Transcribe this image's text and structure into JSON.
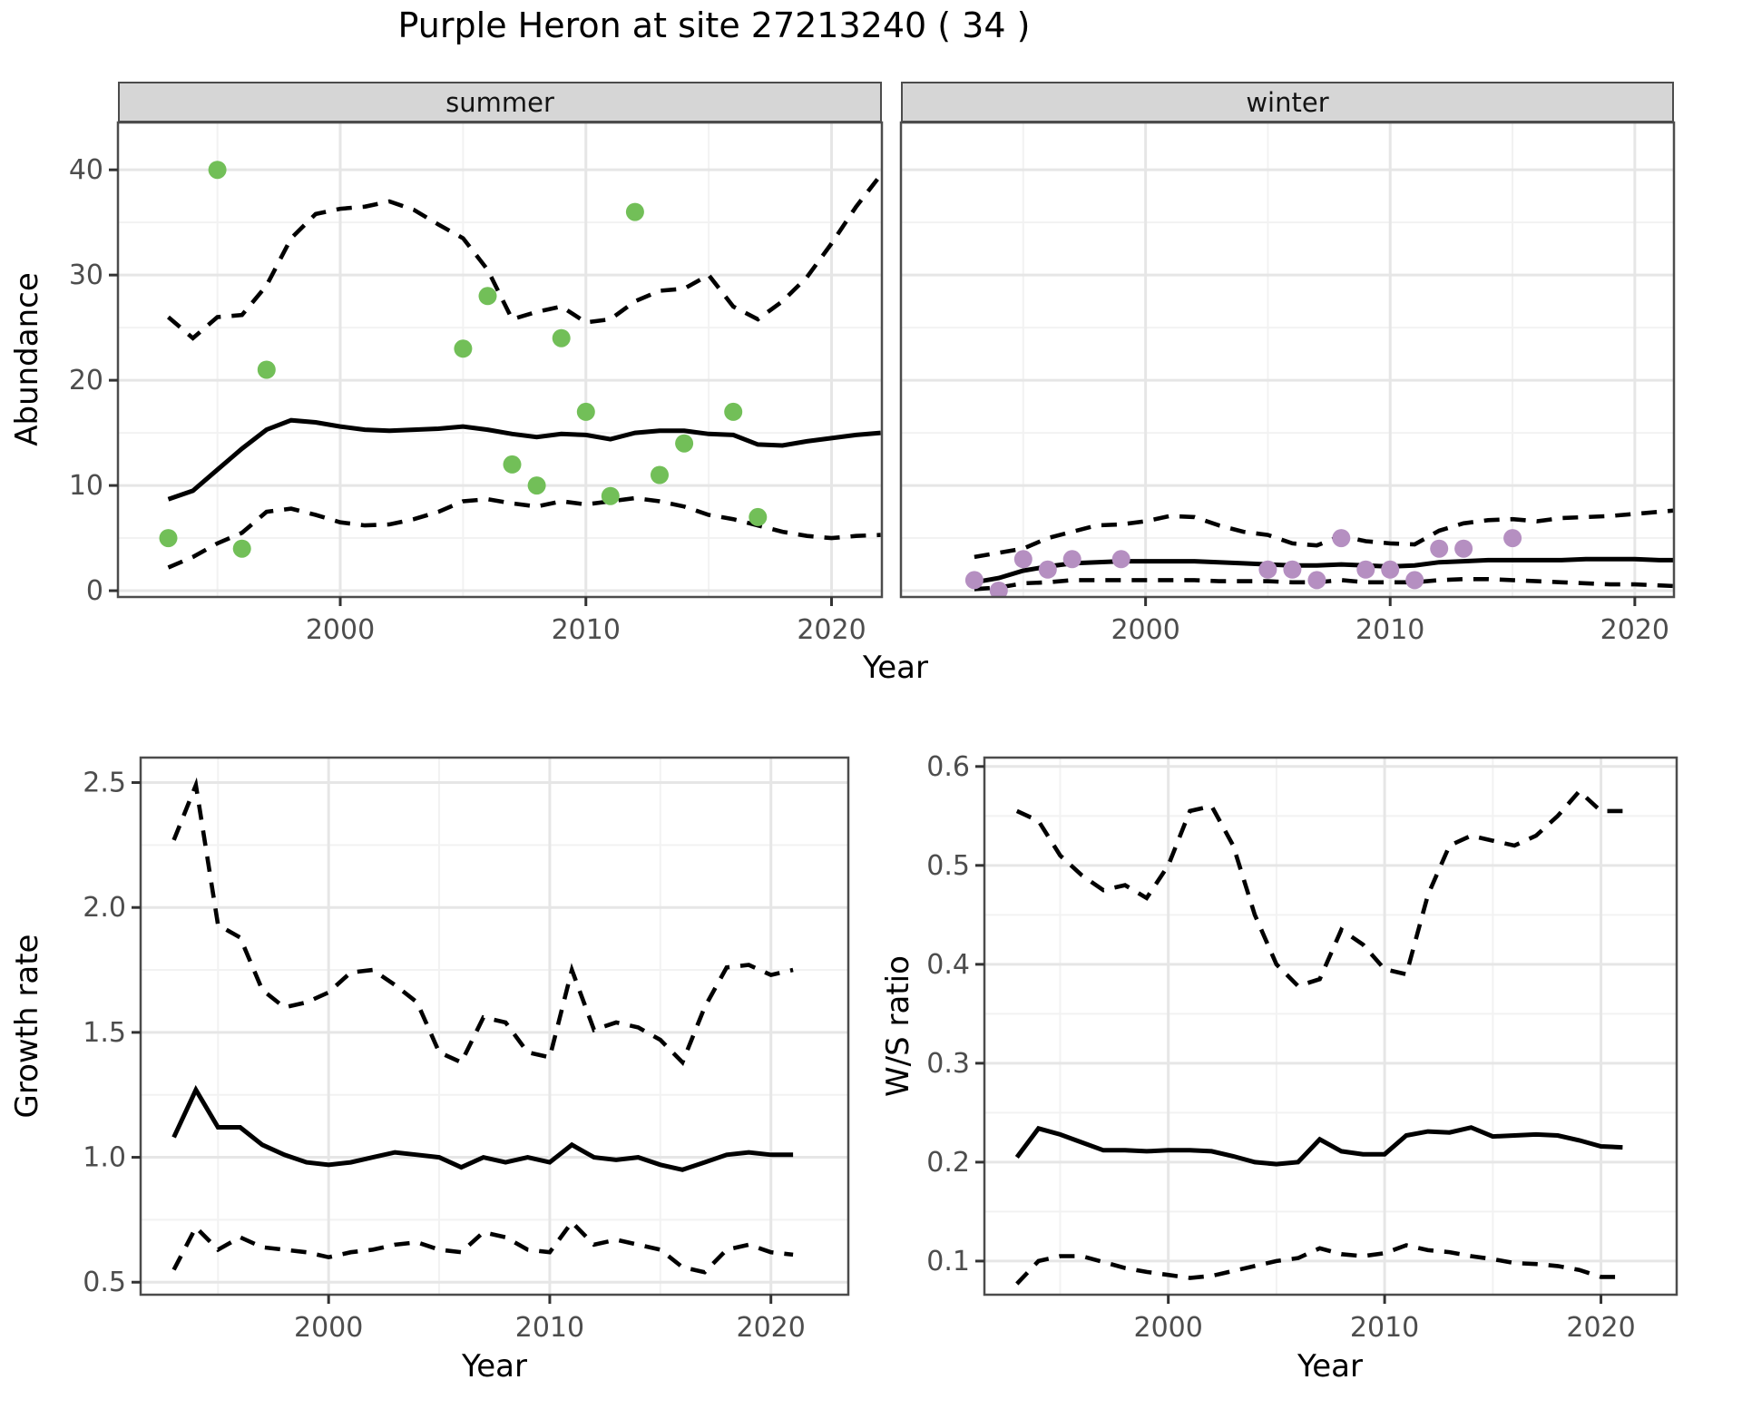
{
  "title": "Purple Heron at site 27213240 ( 34 )",
  "axis_titles": {
    "abundance": "Abundance",
    "year": "Year",
    "growth": "Growth rate",
    "ws": "W/S ratio"
  },
  "colors": {
    "summer_points": "#72bf58",
    "winter_points": "#b58fc1",
    "line": "#000000",
    "strip_bg": "#d6d6d6",
    "panel_border": "#4c4c4c",
    "grid_major": "#e6e6e6",
    "grid_minor": "#f2f2f2",
    "tick_mark": "#333333",
    "tick_text": "#4d4d4d"
  },
  "chart_data": [
    {
      "id": "abundance-summer",
      "type": "line",
      "title": "summer",
      "xlabel": "Year",
      "ylabel": "Abundance",
      "x_domain": [
        1990.95,
        2022.05
      ],
      "y_domain": [
        -0.6,
        44.5
      ],
      "x_ticks": [
        2000,
        2010,
        2020
      ],
      "x_tick_labels": [
        "2000",
        "2010",
        "2020"
      ],
      "x_minor": [
        1995,
        2005,
        2015
      ],
      "y_ticks": [
        0,
        10,
        20,
        30,
        40
      ],
      "y_tick_labels": [
        "0",
        "10",
        "20",
        "30",
        "40"
      ],
      "y_minor": [
        5,
        15,
        25,
        35
      ],
      "years": [
        1993,
        1994,
        1995,
        1996,
        1997,
        1998,
        1999,
        2000,
        2001,
        2002,
        2003,
        2004,
        2005,
        2006,
        2007,
        2008,
        2009,
        2010,
        2011,
        2012,
        2013,
        2014,
        2015,
        2016,
        2017,
        2018,
        2019,
        2020,
        2021,
        2022
      ],
      "series": [
        {
          "name": "mean",
          "style": "solid",
          "values": [
            8.7,
            9.5,
            11.5,
            13.5,
            15.3,
            16.2,
            16.0,
            15.6,
            15.3,
            15.2,
            15.3,
            15.4,
            15.6,
            15.3,
            14.9,
            14.6,
            14.9,
            14.8,
            14.4,
            15.0,
            15.2,
            15.2,
            14.9,
            14.8,
            13.9,
            13.8,
            14.2,
            14.5,
            14.8,
            15.0
          ]
        },
        {
          "name": "upper-ci",
          "style": "dashed",
          "values": [
            26,
            24,
            26,
            26.2,
            29,
            33.5,
            35.8,
            36.3,
            36.5,
            37,
            36.2,
            34.8,
            33.5,
            30.5,
            25.8,
            26.5,
            27,
            25.5,
            25.8,
            27.5,
            28.5,
            28.7,
            30,
            27,
            25.8,
            27.5,
            29.8,
            33,
            36.5,
            39.5
          ]
        },
        {
          "name": "lower-ci",
          "style": "dashed",
          "values": [
            2.2,
            3.2,
            4.5,
            5.5,
            7.5,
            7.8,
            7.2,
            6.5,
            6.2,
            6.3,
            6.8,
            7.5,
            8.5,
            8.7,
            8.3,
            8.0,
            8.5,
            8.2,
            8.5,
            8.8,
            8.5,
            8.0,
            7.2,
            6.8,
            6.2,
            5.6,
            5.2,
            5.0,
            5.2,
            5.3
          ]
        }
      ],
      "points": {
        "name": "summer-observations",
        "color": "#72bf58",
        "data": [
          [
            1993,
            5
          ],
          [
            1995,
            40
          ],
          [
            1996,
            4
          ],
          [
            1997,
            21
          ],
          [
            2005,
            23
          ],
          [
            2006,
            28
          ],
          [
            2007,
            12
          ],
          [
            2008,
            10
          ],
          [
            2009,
            24
          ],
          [
            2010,
            17
          ],
          [
            2011,
            9
          ],
          [
            2012,
            36
          ],
          [
            2013,
            11
          ],
          [
            2014,
            14
          ],
          [
            2016,
            17
          ],
          [
            2017,
            7
          ]
        ]
      }
    },
    {
      "id": "abundance-winter",
      "type": "line",
      "title": "winter",
      "xlabel": "Year",
      "ylabel": "Abundance",
      "x_domain": [
        1990.0,
        2021.6
      ],
      "y_domain": [
        -0.6,
        44.5
      ],
      "x_ticks": [
        2000,
        2010,
        2020
      ],
      "x_tick_labels": [
        "2000",
        "2010",
        "2020"
      ],
      "x_minor": [
        1995,
        2005,
        2015
      ],
      "y_ticks": [
        0,
        10,
        20,
        30,
        40
      ],
      "y_tick_labels": [],
      "y_minor": [
        5,
        15,
        25,
        35
      ],
      "years": [
        1993,
        1994,
        1995,
        1996,
        1997,
        1998,
        1999,
        2000,
        2001,
        2002,
        2003,
        2004,
        2005,
        2006,
        2007,
        2008,
        2009,
        2010,
        2011,
        2012,
        2013,
        2014,
        2015,
        2016,
        2017,
        2018,
        2019,
        2020,
        2021,
        2022
      ],
      "series": [
        {
          "name": "mean",
          "style": "solid",
          "values": [
            0.8,
            1.2,
            1.9,
            2.3,
            2.6,
            2.7,
            2.8,
            2.8,
            2.8,
            2.8,
            2.7,
            2.6,
            2.5,
            2.4,
            2.4,
            2.5,
            2.4,
            2.3,
            2.4,
            2.7,
            2.8,
            2.9,
            2.9,
            2.9,
            2.9,
            3.0,
            3.0,
            3.0,
            2.9,
            2.9
          ]
        },
        {
          "name": "upper-ci",
          "style": "dashed",
          "values": [
            3.2,
            3.6,
            4.0,
            5.0,
            5.6,
            6.2,
            6.3,
            6.6,
            7.1,
            7.0,
            6.2,
            5.6,
            5.3,
            4.5,
            4.3,
            5.2,
            4.7,
            4.5,
            4.4,
            5.7,
            6.4,
            6.7,
            6.8,
            6.6,
            6.9,
            7.0,
            7.1,
            7.3,
            7.5,
            7.7
          ]
        },
        {
          "name": "lower-ci",
          "style": "dashed",
          "values": [
            0.15,
            0.3,
            0.7,
            0.8,
            1.0,
            1.0,
            1.0,
            1.0,
            1.0,
            1.0,
            0.9,
            0.9,
            0.9,
            0.8,
            0.8,
            1.0,
            0.8,
            0.8,
            0.8,
            1.0,
            1.1,
            1.1,
            1.0,
            0.9,
            0.8,
            0.7,
            0.6,
            0.6,
            0.5,
            0.4
          ]
        }
      ],
      "points": {
        "name": "winter-observations",
        "color": "#b58fc1",
        "data": [
          [
            1993,
            1
          ],
          [
            1994,
            0
          ],
          [
            1995,
            3
          ],
          [
            1996,
            2
          ],
          [
            1997,
            3
          ],
          [
            1999,
            3
          ],
          [
            2005,
            2
          ],
          [
            2006,
            2
          ],
          [
            2007,
            1
          ],
          [
            2008,
            5
          ],
          [
            2009,
            2
          ],
          [
            2010,
            2
          ],
          [
            2011,
            1
          ],
          [
            2012,
            4
          ],
          [
            2013,
            4
          ],
          [
            2015,
            5
          ]
        ]
      }
    },
    {
      "id": "growth-rate",
      "type": "line",
      "title": "",
      "xlabel": "Year",
      "ylabel": "Growth rate",
      "x_domain": [
        1991.5,
        2023.5
      ],
      "y_domain": [
        0.45,
        2.6
      ],
      "x_ticks": [
        2000,
        2010,
        2020
      ],
      "x_tick_labels": [
        "2000",
        "2010",
        "2020"
      ],
      "x_minor": [
        1995,
        2005,
        2015
      ],
      "y_ticks": [
        0.5,
        1.0,
        1.5,
        2.0,
        2.5
      ],
      "y_tick_labels": [
        "0.5",
        "1.0",
        "1.5",
        "2.0",
        "2.5"
      ],
      "y_minor": [
        0.75,
        1.25,
        1.75,
        2.25
      ],
      "years": [
        1993,
        1994,
        1995,
        1996,
        1997,
        1998,
        1999,
        2000,
        2001,
        2002,
        2003,
        2004,
        2005,
        2006,
        2007,
        2008,
        2009,
        2010,
        2011,
        2012,
        2013,
        2014,
        2015,
        2016,
        2017,
        2018,
        2019,
        2020,
        2021
      ],
      "series": [
        {
          "name": "mean",
          "style": "solid",
          "values": [
            1.08,
            1.27,
            1.12,
            1.12,
            1.05,
            1.01,
            0.98,
            0.97,
            0.98,
            1.0,
            1.02,
            1.01,
            1.0,
            0.96,
            1.0,
            0.98,
            1.0,
            0.98,
            1.05,
            1.0,
            0.99,
            1.0,
            0.97,
            0.95,
            0.98,
            1.01,
            1.02,
            1.01,
            1.01
          ]
        },
        {
          "name": "upper-ci",
          "style": "dashed",
          "values": [
            2.27,
            2.49,
            1.93,
            1.88,
            1.67,
            1.6,
            1.62,
            1.66,
            1.74,
            1.75,
            1.69,
            1.62,
            1.42,
            1.38,
            1.56,
            1.54,
            1.42,
            1.4,
            1.75,
            1.51,
            1.54,
            1.52,
            1.47,
            1.38,
            1.6,
            1.76,
            1.77,
            1.73,
            1.75
          ]
        },
        {
          "name": "lower-ci",
          "style": "dashed",
          "values": [
            0.55,
            0.72,
            0.63,
            0.68,
            0.64,
            0.63,
            0.62,
            0.6,
            0.62,
            0.63,
            0.65,
            0.66,
            0.63,
            0.62,
            0.7,
            0.68,
            0.63,
            0.62,
            0.74,
            0.65,
            0.67,
            0.65,
            0.63,
            0.56,
            0.54,
            0.63,
            0.65,
            0.62,
            0.61
          ]
        }
      ],
      "points": null
    },
    {
      "id": "ws-ratio",
      "type": "line",
      "title": "",
      "xlabel": "Year",
      "ylabel": "W/S ratio",
      "x_domain": [
        1991.5,
        2023.5
      ],
      "y_domain": [
        0.066,
        0.609
      ],
      "x_ticks": [
        2000,
        2010,
        2020
      ],
      "x_tick_labels": [
        "2000",
        "2010",
        "2020"
      ],
      "x_minor": [
        1995,
        2005,
        2015
      ],
      "y_ticks": [
        0.1,
        0.2,
        0.3,
        0.4,
        0.5,
        0.6
      ],
      "y_tick_labels": [
        "0.1",
        "0.2",
        "0.3",
        "0.4",
        "0.5",
        "0.6"
      ],
      "y_minor": [
        0.15,
        0.25,
        0.35,
        0.45,
        0.55
      ],
      "years": [
        1993,
        1994,
        1995,
        1996,
        1997,
        1998,
        1999,
        2000,
        2001,
        2002,
        2003,
        2004,
        2005,
        2006,
        2007,
        2008,
        2009,
        2010,
        2011,
        2012,
        2013,
        2014,
        2015,
        2016,
        2017,
        2018,
        2019,
        2020,
        2021
      ],
      "series": [
        {
          "name": "mean",
          "style": "solid",
          "values": [
            0.205,
            0.234,
            0.228,
            0.22,
            0.212,
            0.212,
            0.211,
            0.212,
            0.212,
            0.211,
            0.206,
            0.2,
            0.198,
            0.2,
            0.223,
            0.211,
            0.208,
            0.208,
            0.227,
            0.231,
            0.23,
            0.235,
            0.226,
            0.227,
            0.228,
            0.227,
            0.222,
            0.216,
            0.215
          ]
        },
        {
          "name": "upper-ci",
          "style": "dashed",
          "values": [
            0.555,
            0.545,
            0.51,
            0.49,
            0.475,
            0.48,
            0.467,
            0.5,
            0.555,
            0.56,
            0.52,
            0.45,
            0.4,
            0.378,
            0.385,
            0.435,
            0.42,
            0.395,
            0.39,
            0.47,
            0.52,
            0.53,
            0.525,
            0.52,
            0.53,
            0.55,
            0.575,
            0.555,
            0.555
          ]
        },
        {
          "name": "lower-ci",
          "style": "dashed",
          "values": [
            0.077,
            0.1,
            0.105,
            0.105,
            0.099,
            0.093,
            0.089,
            0.086,
            0.083,
            0.085,
            0.09,
            0.095,
            0.1,
            0.103,
            0.113,
            0.107,
            0.105,
            0.108,
            0.116,
            0.111,
            0.109,
            0.105,
            0.102,
            0.098,
            0.097,
            0.095,
            0.091,
            0.084,
            0.084
          ]
        }
      ],
      "points": null
    }
  ]
}
